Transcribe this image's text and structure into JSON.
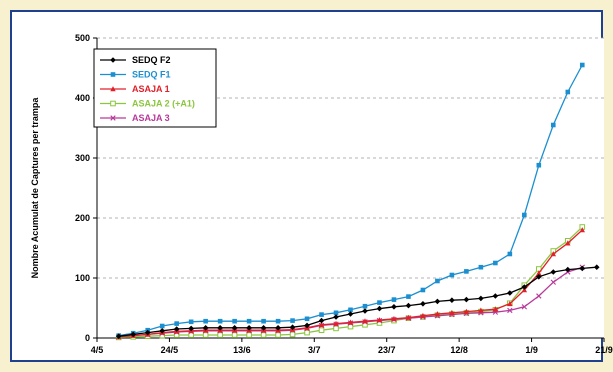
{
  "chart_data": {
    "type": "line",
    "ylabel": "Nombre Acumulat de Captures per trampa",
    "xlabel": "",
    "title": "",
    "ylim": [
      0,
      500
    ],
    "y_ticks": [
      0,
      100,
      200,
      300,
      400,
      500
    ],
    "x_ticks": [
      "4/5",
      "24/5",
      "13/6",
      "3/7",
      "23/7",
      "12/8",
      "1/9",
      "21/9"
    ],
    "x_tick_days": [
      0,
      20,
      40,
      60,
      80,
      100,
      120,
      140
    ],
    "legend_position": "top-left",
    "grid": "horizontal dashed",
    "x_days": [
      6,
      10,
      14,
      18,
      22,
      26,
      30,
      34,
      38,
      42,
      46,
      50,
      54,
      58,
      62,
      66,
      70,
      74,
      78,
      82,
      86,
      90,
      94,
      98,
      102,
      106,
      110,
      114,
      118,
      122,
      126,
      130,
      134,
      138
    ],
    "series": [
      {
        "name": "SEDQ F2",
        "color": "#000000",
        "marker": "diamond",
        "values": [
          3,
          6,
          9,
          12,
          15,
          16,
          17,
          17,
          17,
          17,
          17,
          17,
          18,
          21,
          29,
          35,
          40,
          45,
          49,
          52,
          54,
          57,
          61,
          63,
          64,
          66,
          70,
          75,
          85,
          102,
          110,
          114,
          116,
          118
        ]
      },
      {
        "name": "SEDQ F1",
        "color": "#1b8fd0",
        "marker": "square",
        "values": [
          4,
          8,
          13,
          20,
          24,
          27,
          28,
          28,
          28,
          28,
          28,
          28,
          29,
          32,
          39,
          42,
          47,
          53,
          59,
          64,
          69,
          80,
          95,
          105,
          111,
          118,
          125,
          140,
          205,
          288,
          355,
          410,
          455,
          null
        ]
      },
      {
        "name": "ASAJA 1",
        "color": "#e0202a",
        "marker": "triangle",
        "values": [
          2,
          4,
          6,
          9,
          11,
          12,
          13,
          13,
          13,
          13,
          13,
          13,
          14,
          17,
          22,
          24,
          26,
          28,
          30,
          32,
          34,
          37,
          40,
          42,
          44,
          46,
          48,
          57,
          80,
          108,
          140,
          158,
          180,
          null
        ]
      },
      {
        "name": "ASAJA 2 (+A1)",
        "color": "#8cc63f",
        "marker": "open-square",
        "values": [
          1,
          2,
          3,
          4,
          5,
          5,
          5,
          5,
          5,
          5,
          5,
          5,
          6,
          9,
          13,
          16,
          19,
          22,
          25,
          29,
          33,
          35,
          38,
          40,
          42,
          44,
          47,
          58,
          88,
          115,
          145,
          162,
          185,
          null
        ]
      },
      {
        "name": "ASAJA 3",
        "color": "#b8399a",
        "marker": "x",
        "values": [
          2,
          4,
          6,
          8,
          10,
          11,
          12,
          12,
          12,
          12,
          12,
          12,
          13,
          16,
          21,
          23,
          25,
          27,
          29,
          31,
          33,
          35,
          37,
          39,
          41,
          42,
          43,
          46,
          52,
          70,
          93,
          110,
          118,
          null
        ]
      }
    ]
  }
}
